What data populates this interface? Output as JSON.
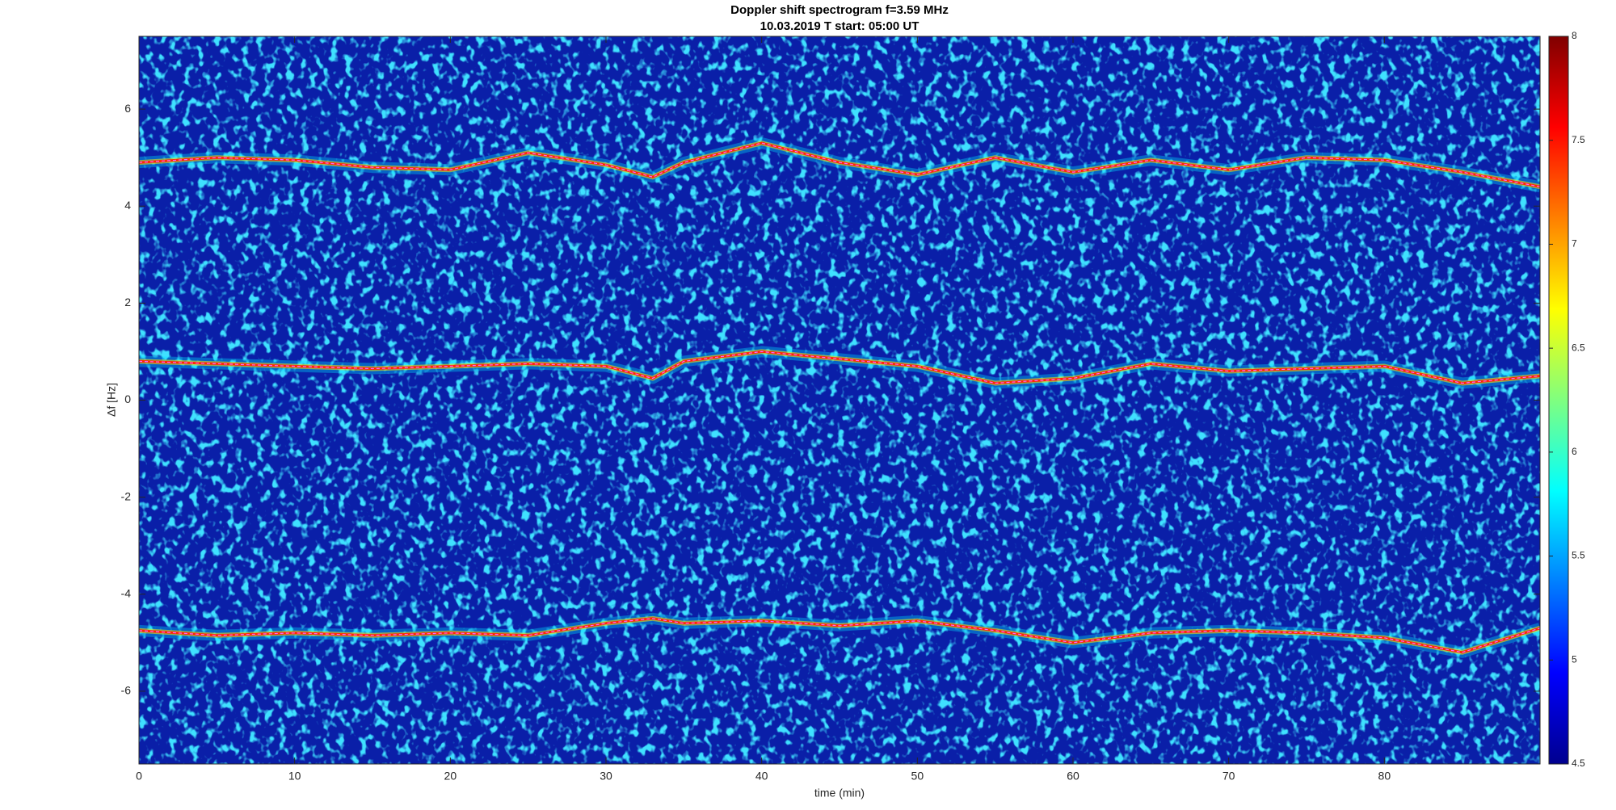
{
  "chart_data": {
    "type": "spectrogram",
    "title": "Doppler shift spectrogram f=3.59 MHz",
    "subtitle": "10.03.2019   T start: 05:00 UT",
    "xlabel": "time (min)",
    "ylabel": "Δf [Hz]",
    "xlim": [
      0,
      90
    ],
    "ylim": [
      -7.5,
      7.5
    ],
    "xticks": [
      0,
      10,
      20,
      30,
      40,
      50,
      60,
      70,
      80
    ],
    "yticks": [
      -6,
      -4,
      -2,
      0,
      2,
      4,
      6
    ],
    "colormap": "jet",
    "clim": [
      4.5,
      8
    ],
    "cticks": [
      4.5,
      5,
      5.5,
      6,
      6.5,
      7,
      7.5,
      8
    ],
    "x": [
      0,
      5,
      10,
      15,
      20,
      25,
      30,
      33,
      35,
      40,
      45,
      50,
      55,
      60,
      65,
      70,
      75,
      80,
      85,
      90
    ],
    "series": [
      {
        "color": "#ff2a00",
        "values": [
          4.9,
          5.0,
          4.95,
          4.8,
          4.75,
          5.1,
          4.85,
          4.6,
          4.9,
          5.3,
          4.9,
          4.65,
          5.0,
          4.7,
          4.95,
          4.75,
          5.0,
          4.95,
          4.7,
          4.4
        ]
      },
      {
        "color": "#ff2a00",
        "values": [
          0.8,
          0.75,
          0.7,
          0.65,
          0.7,
          0.75,
          0.7,
          0.45,
          0.8,
          1.0,
          0.85,
          0.7,
          0.35,
          0.45,
          0.75,
          0.6,
          0.65,
          0.7,
          0.35,
          0.5
        ]
      },
      {
        "color": "#ff2a00",
        "values": [
          -4.75,
          -4.85,
          -4.8,
          -4.85,
          -4.8,
          -4.85,
          -4.6,
          -4.5,
          -4.6,
          -4.55,
          -4.65,
          -4.55,
          -4.75,
          -5.0,
          -4.8,
          -4.75,
          -4.8,
          -4.9,
          -5.2,
          -4.7
        ]
      }
    ]
  }
}
